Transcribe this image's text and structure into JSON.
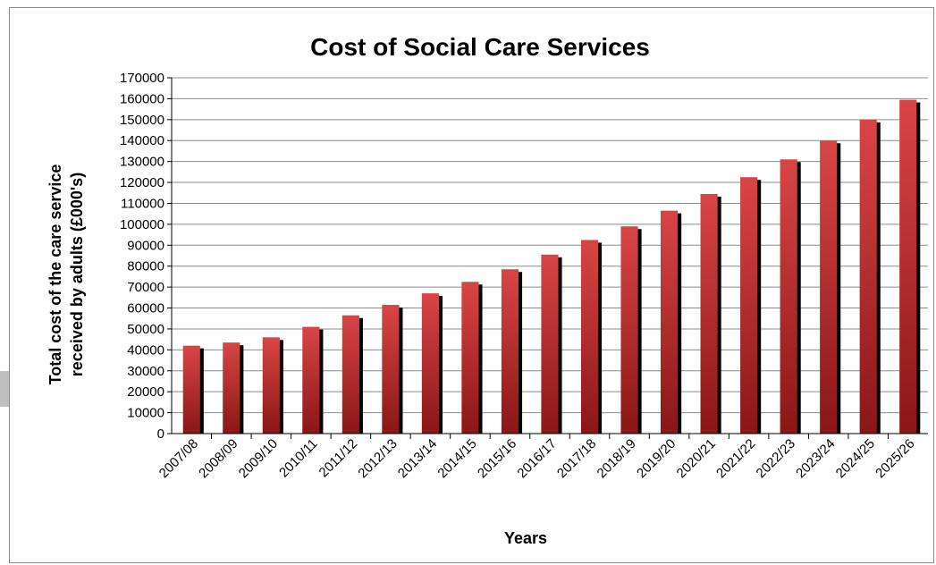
{
  "chart_data": {
    "type": "bar",
    "title": "Cost of Social Care Services",
    "xlabel": "Years",
    "ylabel_line1": "Total cost of the care service",
    "ylabel_line2": "received by adults (£000's)",
    "categories": [
      "2007/08",
      "2008/09",
      "2009/10",
      "2010/11",
      "2011/12",
      "2012/13",
      "2013/14",
      "2014/15",
      "2015/16",
      "2016/17",
      "2017/18",
      "2018/19",
      "2019/20",
      "2020/21",
      "2021/22",
      "2022/23",
      "2023/24",
      "2024/25",
      "2025/26"
    ],
    "values": [
      42000,
      43500,
      46000,
      51000,
      56500,
      61500,
      67000,
      72500,
      78500,
      85500,
      92500,
      99000,
      106500,
      114500,
      122500,
      131000,
      140000,
      150000,
      159500
    ],
    "ylim": [
      0,
      170000
    ],
    "yticks": [
      0,
      10000,
      20000,
      30000,
      40000,
      50000,
      60000,
      70000,
      80000,
      90000,
      100000,
      110000,
      120000,
      130000,
      140000,
      150000,
      160000,
      170000
    ],
    "grid": true,
    "legend": "none",
    "colors": {
      "bar_light": "#d94545",
      "bar_dark": "#8a1616",
      "shadow": "#000000",
      "grid": "#8c8c8c"
    }
  }
}
